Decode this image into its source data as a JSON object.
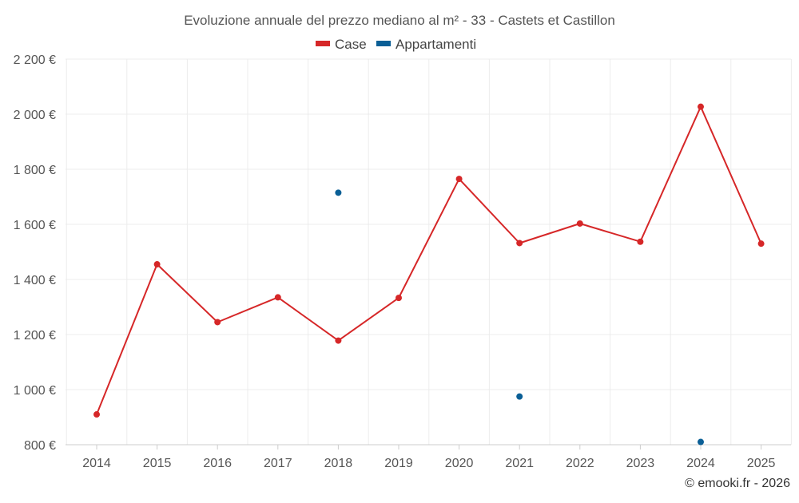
{
  "chart_data": {
    "type": "line",
    "title": "Evoluzione annuale del prezzo mediano al m² - 33 - Castets et Castillon",
    "categories": [
      "2014",
      "2015",
      "2016",
      "2017",
      "2018",
      "2019",
      "2020",
      "2021",
      "2022",
      "2023",
      "2024",
      "2025"
    ],
    "series": [
      {
        "name": "Case",
        "color": "#d62728",
        "values": [
          910,
          1455,
          1245,
          1335,
          1178,
          1333,
          1765,
          1532,
          1603,
          1537,
          2027,
          1530
        ]
      },
      {
        "name": "Appartamenti",
        "color": "#0a5f96",
        "values": [
          null,
          null,
          null,
          null,
          1715,
          null,
          null,
          975,
          null,
          null,
          810,
          null
        ]
      }
    ],
    "ylim": [
      800,
      2200
    ],
    "yticks": [
      800,
      1000,
      1200,
      1400,
      1600,
      1800,
      2000,
      2200
    ],
    "ytick_labels": [
      "800 €",
      "1 000 €",
      "1 200 €",
      "1 400 €",
      "1 600 €",
      "1 800 €",
      "2 000 €",
      "2 200 €"
    ],
    "xlabel": "",
    "ylabel": "",
    "grid": true,
    "legend_position": "top-center"
  },
  "credit": "© emooki.fr - 2026"
}
